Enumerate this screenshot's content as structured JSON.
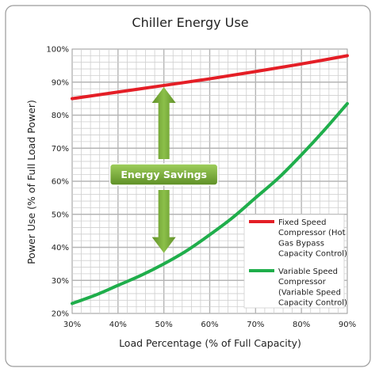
{
  "chart_data": {
    "type": "line",
    "title": "Chiller Energy Use",
    "xlabel": "Load Percentage (% of Full Capacity)",
    "ylabel": "Power Use (% of Full Load Power)",
    "xlim": [
      30,
      90
    ],
    "ylim": [
      20,
      100
    ],
    "x_ticks": [
      30,
      40,
      50,
      60,
      70,
      80,
      90
    ],
    "y_ticks": [
      20,
      30,
      40,
      50,
      60,
      70,
      80,
      90,
      100
    ],
    "x_tick_labels": [
      "30%",
      "40%",
      "50%",
      "60%",
      "70%",
      "80%",
      "90%"
    ],
    "y_tick_labels": [
      "20%",
      "30%",
      "40%",
      "50%",
      "60%",
      "70%",
      "80%",
      "90%",
      "100%"
    ],
    "grid": true,
    "legend_position": "bottom-right",
    "series": [
      {
        "name_lines": [
          "Fixed Speed",
          "Compressor (Hot",
          "Gas Bypass",
          "Capacity Control)"
        ],
        "color": "#e41e26",
        "x": [
          30,
          40,
          50,
          60,
          70,
          80,
          90
        ],
        "y": [
          85,
          87,
          89,
          91,
          93.2,
          95.5,
          98
        ]
      },
      {
        "name_lines": [
          "Variable Speed",
          "Compressor",
          "(Variable Speed",
          "Capacity Control)"
        ],
        "color": "#1fae4b",
        "x": [
          30,
          35,
          40,
          45,
          50,
          55,
          60,
          65,
          70,
          75,
          80,
          85,
          90
        ],
        "y": [
          23,
          25.5,
          28.5,
          31.5,
          35,
          39,
          43.8,
          49,
          55,
          61,
          68,
          75.5,
          83.5
        ]
      }
    ],
    "annotation": {
      "text": "Energy Savings",
      "x": 50,
      "color": "#6fa331"
    }
  }
}
